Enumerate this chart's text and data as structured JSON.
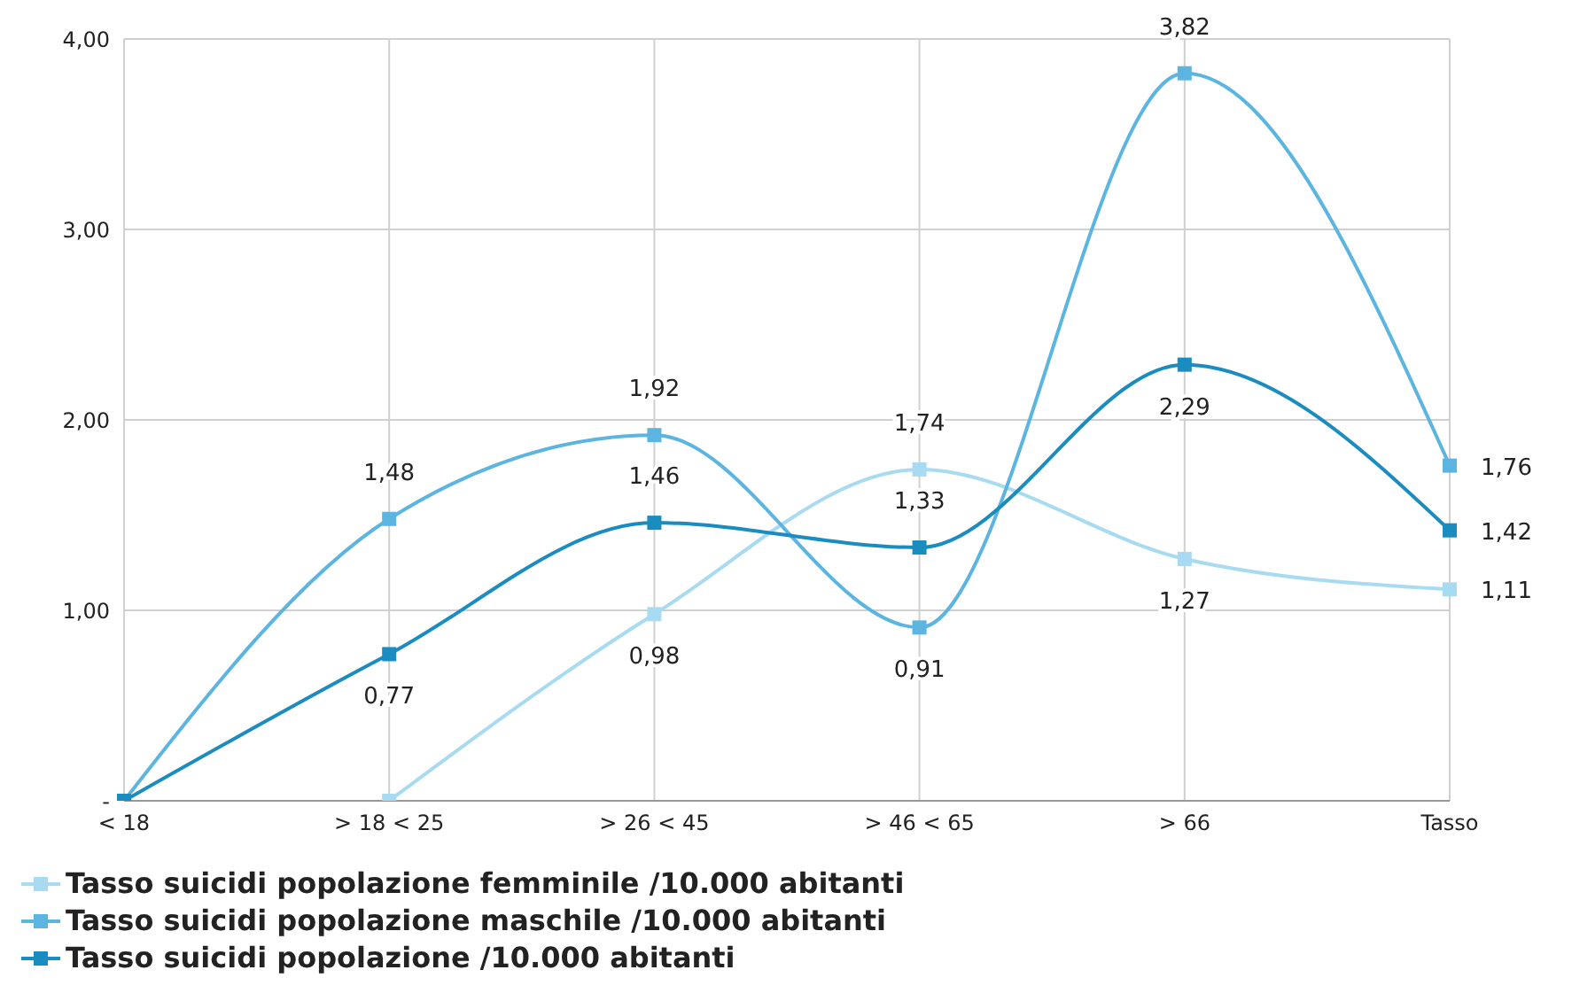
{
  "chart_data": {
    "type": "line",
    "categories": [
      "< 18",
      "> 18 < 25",
      "> 26 < 45",
      "> 46 < 65",
      "> 66",
      "Tasso"
    ],
    "series": [
      {
        "name": "Tasso suicidi popolazione femminile /10.000 abitanti",
        "color": "#a8daf2",
        "values": [
          null,
          0,
          0.98,
          1.74,
          1.27,
          1.11
        ],
        "value_labels": [
          null,
          null,
          "0,98",
          "1,74",
          "1,27",
          "1,11"
        ]
      },
      {
        "name": "Tasso suicidi popolazione maschile /10.000 abitanti",
        "color": "#5cb5e0",
        "values": [
          0,
          1.48,
          1.92,
          0.91,
          3.82,
          1.76
        ],
        "value_labels": [
          null,
          "1,48",
          "1,92",
          "0,91",
          "3,82",
          "1,76"
        ]
      },
      {
        "name": "Tasso suicidi popolazione /10.000 abitanti",
        "color": "#1a8cbf",
        "values": [
          0,
          0.77,
          1.46,
          1.33,
          2.29,
          1.42
        ],
        "value_labels": [
          null,
          "0,77",
          "1,46",
          "1,33",
          "2,29",
          "1,42"
        ]
      }
    ],
    "ylim": [
      0,
      4
    ],
    "yticks": [
      {
        "value": 0,
        "label": "-"
      },
      {
        "value": 1,
        "label": "1,00"
      },
      {
        "value": 2,
        "label": "2,00"
      },
      {
        "value": 3,
        "label": "3,00"
      },
      {
        "value": 4,
        "label": "4,00"
      }
    ],
    "grid": true,
    "legend": "bottom left",
    "marker": "square",
    "line_style": "solid"
  }
}
